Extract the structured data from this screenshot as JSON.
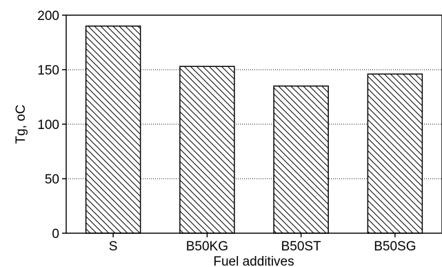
{
  "chart_data": {
    "type": "bar",
    "categories": [
      "S",
      "B50KG",
      "B50ST",
      "B50SG"
    ],
    "values": [
      190,
      153,
      135,
      146
    ],
    "xlabel": "Fuel additives",
    "ylabel": "Tg, oC",
    "ylim": [
      0,
      200
    ],
    "yticks": [
      0,
      50,
      100,
      150,
      200
    ],
    "grid": true,
    "bar_pattern": "diagonal-hatch",
    "bar_color": "#000000",
    "background": "#ffffff"
  }
}
